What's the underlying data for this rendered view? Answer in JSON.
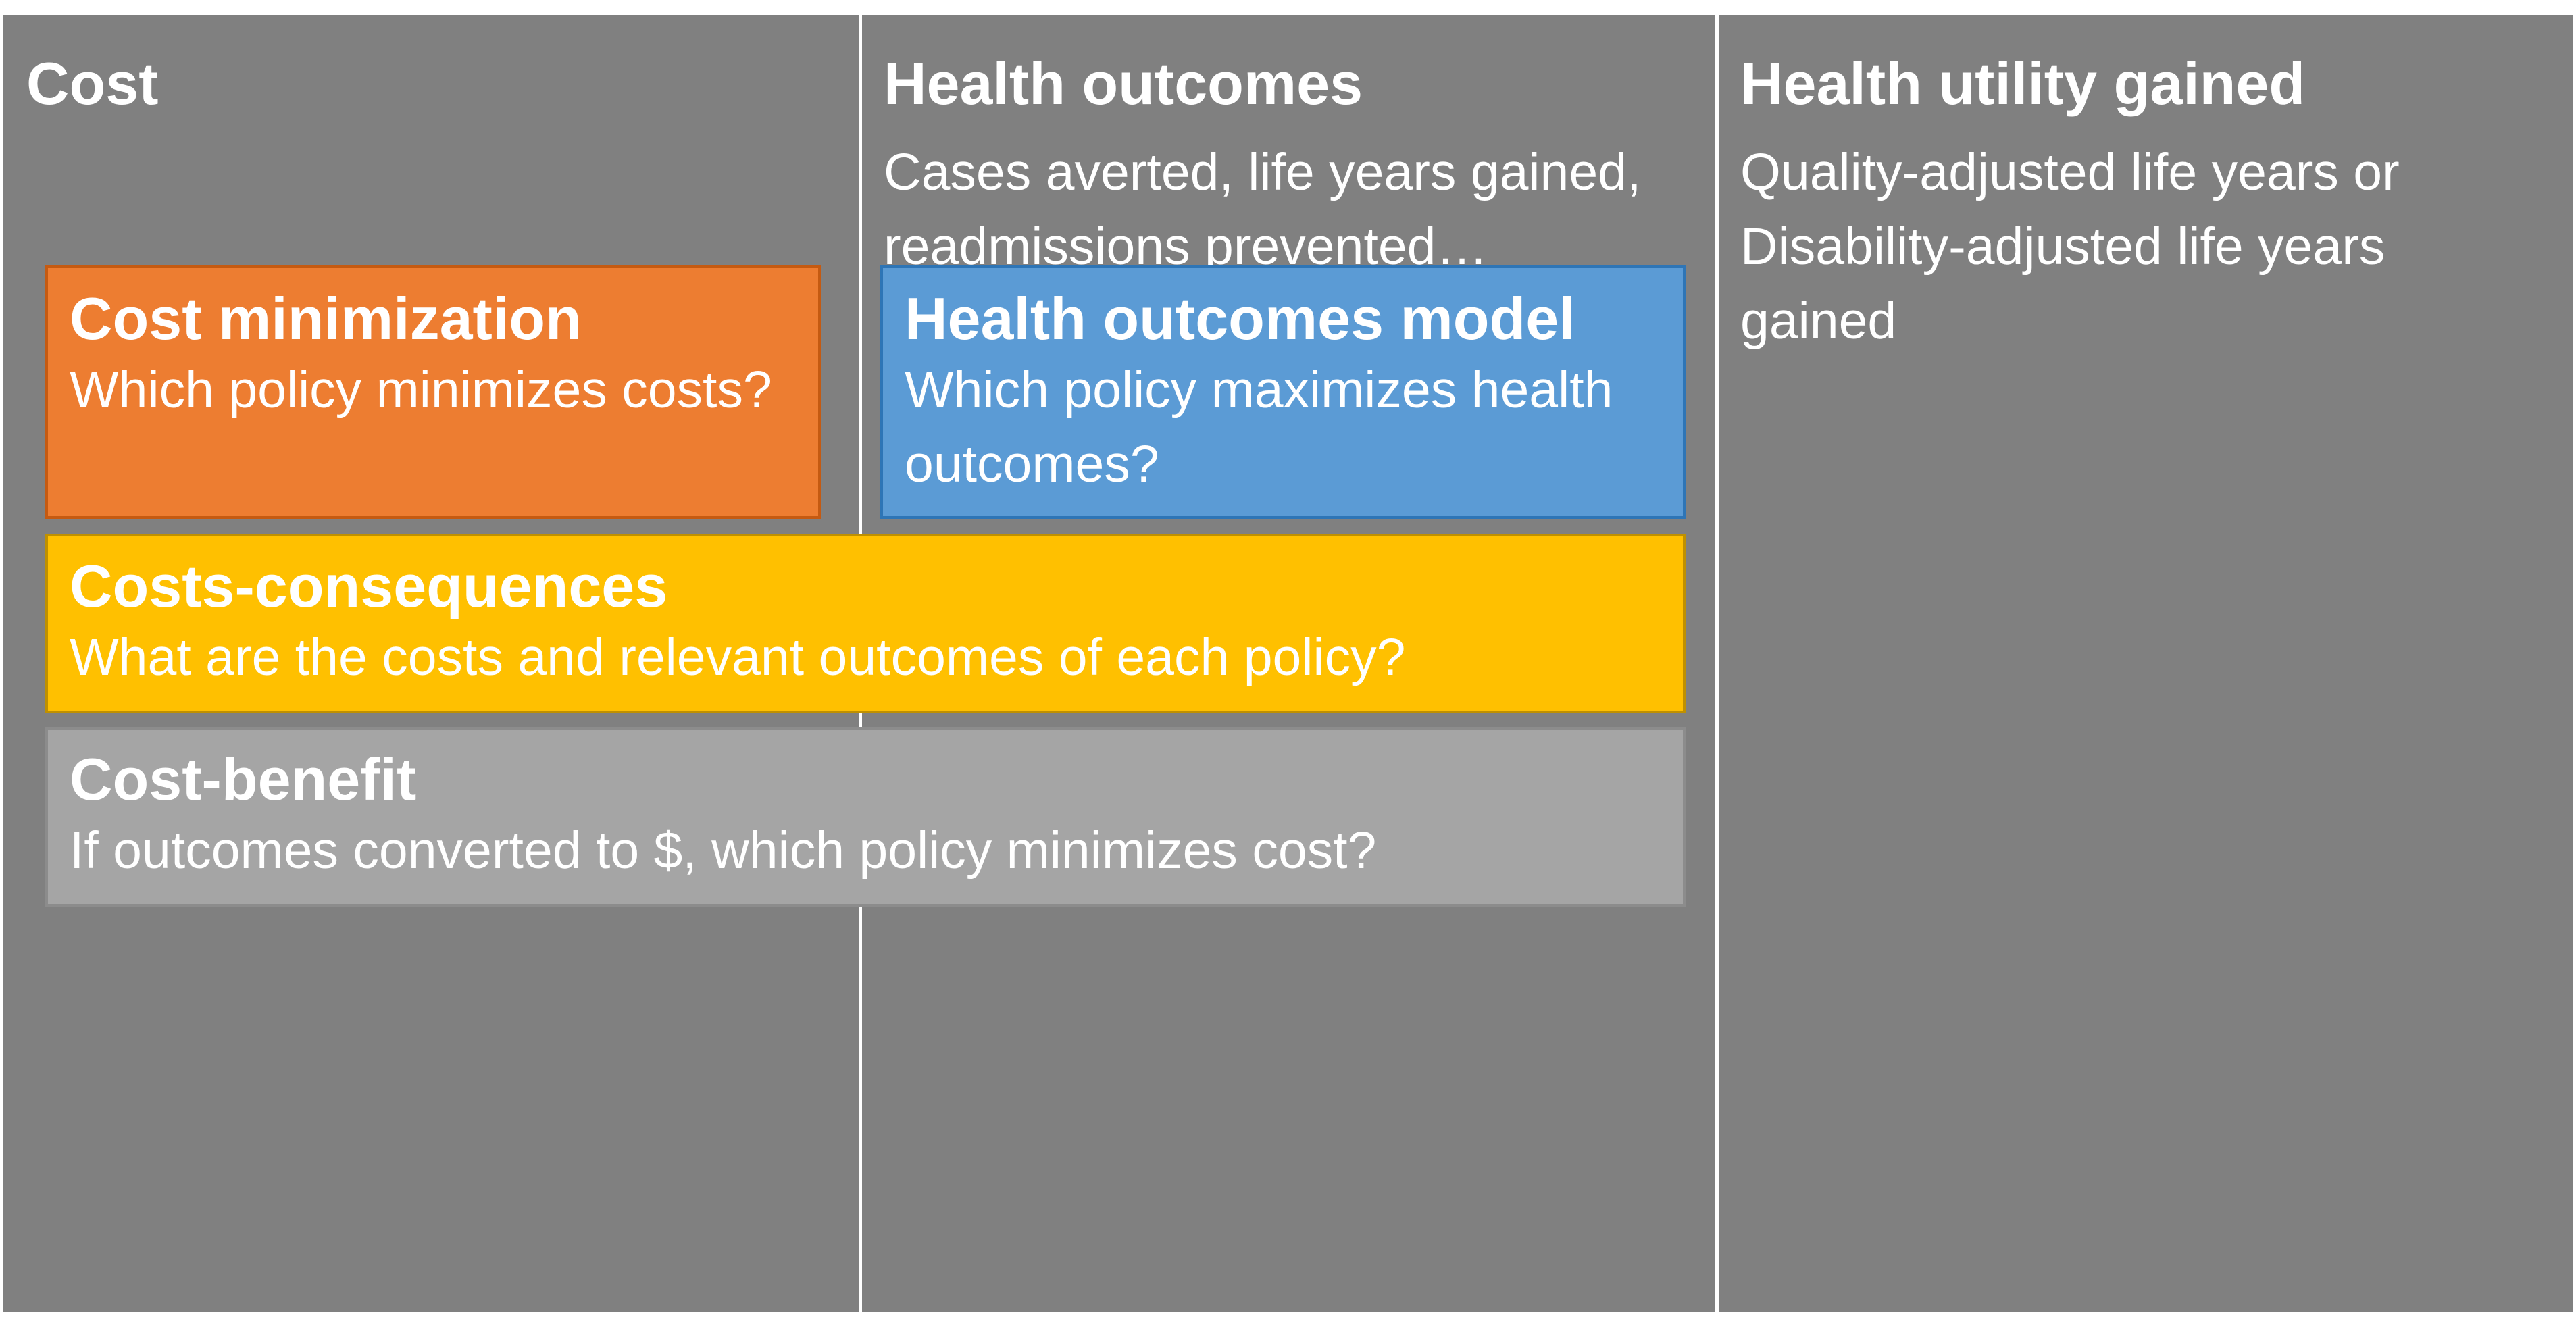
{
  "columns": {
    "cost": {
      "title": "Cost"
    },
    "health_outcomes": {
      "title": "Health outcomes",
      "subtitle": "Cases averted, life years gained, readmissions prevented…"
    },
    "health_utility": {
      "title": "Health utility gained",
      "subtitle": "Quality-adjusted life years or Disability-adjusted life years gained"
    }
  },
  "boxes": {
    "cost_minimization": {
      "title": "Cost minimization",
      "question": "Which policy minimizes costs?",
      "color": "#ed7d31"
    },
    "health_outcomes_model": {
      "title": "Health outcomes model",
      "question": "Which policy maximizes health outcomes?",
      "color": "#5b9bd5"
    },
    "costs_consequences": {
      "title": "Costs-consequences",
      "question": "What are the costs and relevant outcomes of each policy?",
      "color": "#ffc000"
    },
    "cost_benefit": {
      "title": "Cost-benefit",
      "question": "If outcomes converted to $, which policy minimizes cost?",
      "color": "#a5a5a5"
    }
  },
  "colors": {
    "column_background": "#808080",
    "text": "#ffffff"
  }
}
